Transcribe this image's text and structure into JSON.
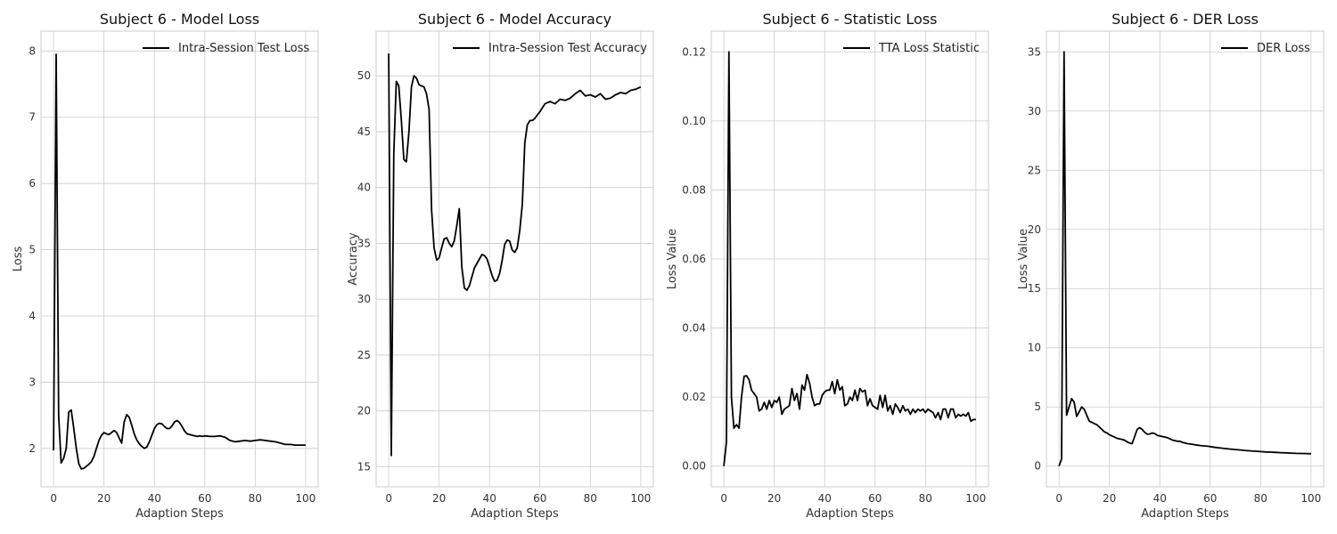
{
  "chart_data": [
    {
      "type": "line",
      "title": "Subject 6 - Model Loss",
      "xlabel": "Adaption Steps",
      "ylabel": "Loss",
      "xlim": [
        -5,
        105
      ],
      "ylim": [
        1.42,
        8.3
      ],
      "xticks": [
        0,
        20,
        40,
        60,
        80,
        100
      ],
      "yticks": [
        2,
        3,
        4,
        5,
        6,
        7,
        8
      ],
      "grid": true,
      "legend_position": "top-right",
      "series": [
        {
          "name": "Intra-Session Test Loss",
          "color": "#000000",
          "x": [
            0,
            1,
            2,
            3,
            4,
            5,
            6,
            7,
            8,
            9,
            10,
            11,
            12,
            13,
            14,
            15,
            16,
            17,
            18,
            19,
            20,
            21,
            22,
            23,
            24,
            25,
            26,
            27,
            28,
            29,
            30,
            31,
            32,
            33,
            34,
            35,
            36,
            37,
            38,
            39,
            40,
            41,
            42,
            43,
            44,
            45,
            46,
            47,
            48,
            49,
            50,
            51,
            52,
            53,
            54,
            55,
            56,
            57,
            58,
            59,
            60,
            62,
            64,
            66,
            68,
            70,
            72,
            74,
            76,
            78,
            80,
            82,
            84,
            86,
            88,
            90,
            92,
            94,
            96,
            98,
            100
          ],
          "y": [
            1.97,
            7.95,
            2.5,
            1.78,
            1.85,
            2.0,
            2.55,
            2.58,
            2.3,
            2.0,
            1.77,
            1.69,
            1.7,
            1.73,
            1.76,
            1.8,
            1.88,
            2.0,
            2.12,
            2.2,
            2.24,
            2.22,
            2.21,
            2.24,
            2.27,
            2.24,
            2.16,
            2.08,
            2.4,
            2.51,
            2.47,
            2.35,
            2.22,
            2.13,
            2.07,
            2.03,
            2.0,
            2.02,
            2.1,
            2.2,
            2.3,
            2.36,
            2.38,
            2.37,
            2.33,
            2.3,
            2.3,
            2.34,
            2.4,
            2.42,
            2.39,
            2.33,
            2.26,
            2.22,
            2.21,
            2.2,
            2.19,
            2.18,
            2.19,
            2.18,
            2.19,
            2.18,
            2.18,
            2.19,
            2.17,
            2.12,
            2.1,
            2.11,
            2.12,
            2.11,
            2.12,
            2.13,
            2.12,
            2.11,
            2.1,
            2.08,
            2.06,
            2.06,
            2.05,
            2.05,
            2.05
          ]
        }
      ]
    },
    {
      "type": "line",
      "title": "Subject 6 - Model Accuracy",
      "xlabel": "Adaption Steps",
      "ylabel": "Accuracy",
      "xlim": [
        -5,
        105
      ],
      "ylim": [
        13.2,
        54.0
      ],
      "xticks": [
        0,
        20,
        40,
        60,
        80,
        100
      ],
      "yticks": [
        15,
        20,
        25,
        30,
        35,
        40,
        45,
        50
      ],
      "grid": true,
      "legend_position": "top-right",
      "series": [
        {
          "name": "Intra-Session Test Accuracy",
          "color": "#000000",
          "x": [
            0,
            1,
            2,
            3,
            4,
            5,
            6,
            7,
            8,
            9,
            10,
            11,
            12,
            13,
            14,
            15,
            16,
            17,
            18,
            19,
            20,
            21,
            22,
            23,
            24,
            25,
            26,
            27,
            28,
            29,
            30,
            31,
            32,
            33,
            34,
            35,
            36,
            37,
            38,
            39,
            40,
            41,
            42,
            43,
            44,
            45,
            46,
            47,
            48,
            49,
            50,
            51,
            52,
            53,
            54,
            55,
            56,
            57,
            58,
            59,
            60,
            62,
            64,
            66,
            68,
            70,
            72,
            74,
            76,
            78,
            80,
            82,
            84,
            86,
            88,
            90,
            92,
            94,
            96,
            98,
            100
          ],
          "y": [
            52,
            16,
            43,
            49.5,
            49.1,
            46,
            42.5,
            42.3,
            45,
            49,
            50,
            49.8,
            49.2,
            49.1,
            49,
            48.4,
            47,
            38,
            34.6,
            33.5,
            33.7,
            34.6,
            35.4,
            35.5,
            35,
            34.7,
            35.2,
            36.6,
            38.1,
            32.9,
            31,
            30.8,
            31.2,
            32,
            32.8,
            33.2,
            33.6,
            34,
            33.9,
            33.6,
            32.9,
            32.1,
            31.6,
            31.7,
            32.3,
            33.5,
            34.9,
            35.3,
            35.2,
            34.4,
            34.2,
            34.6,
            36.2,
            38.5,
            44,
            45.6,
            46,
            46,
            46.2,
            46.5,
            46.8,
            47.5,
            47.7,
            47.5,
            47.9,
            47.8,
            48.0,
            48.4,
            48.7,
            48.2,
            48.3,
            48.1,
            48.4,
            47.9,
            48.0,
            48.3,
            48.5,
            48.4,
            48.7,
            48.8,
            49.0
          ]
        }
      ]
    },
    {
      "type": "line",
      "title": "Subject 6 - Statistic Loss",
      "xlabel": "Adaption Steps",
      "ylabel": "Loss Value",
      "xlim": [
        -5,
        105
      ],
      "ylim": [
        -0.006,
        0.126
      ],
      "xticks": [
        0,
        20,
        40,
        60,
        80,
        100
      ],
      "yticks": [
        0.0,
        0.02,
        0.04,
        0.06,
        0.08,
        0.1,
        0.12
      ],
      "grid": true,
      "legend_position": "top-right",
      "series": [
        {
          "name": "TTA Loss Statistic",
          "color": "#000000",
          "x": [
            0,
            1,
            2,
            3,
            4,
            5,
            6,
            7,
            8,
            9,
            10,
            11,
            12,
            13,
            14,
            15,
            16,
            17,
            18,
            19,
            20,
            21,
            22,
            23,
            24,
            25,
            26,
            27,
            28,
            29,
            30,
            31,
            32,
            33,
            34,
            35,
            36,
            37,
            38,
            39,
            40,
            41,
            42,
            43,
            44,
            45,
            46,
            47,
            48,
            49,
            50,
            51,
            52,
            53,
            54,
            55,
            56,
            57,
            58,
            59,
            60,
            61,
            62,
            63,
            64,
            65,
            66,
            67,
            68,
            69,
            70,
            71,
            72,
            73,
            74,
            75,
            76,
            77,
            78,
            79,
            80,
            81,
            82,
            83,
            84,
            85,
            86,
            87,
            88,
            89,
            90,
            91,
            92,
            93,
            94,
            95,
            96,
            97,
            98,
            99,
            100
          ],
          "y": [
            0.0,
            0.007,
            0.12,
            0.02,
            0.011,
            0.012,
            0.011,
            0.02,
            0.026,
            0.0262,
            0.025,
            0.022,
            0.021,
            0.02,
            0.016,
            0.0165,
            0.0185,
            0.0165,
            0.019,
            0.017,
            0.019,
            0.0185,
            0.02,
            0.015,
            0.0165,
            0.017,
            0.0175,
            0.0225,
            0.019,
            0.021,
            0.0165,
            0.0235,
            0.022,
            0.0265,
            0.024,
            0.02,
            0.0175,
            0.018,
            0.018,
            0.0205,
            0.0215,
            0.022,
            0.022,
            0.0245,
            0.021,
            0.025,
            0.022,
            0.023,
            0.0175,
            0.018,
            0.02,
            0.019,
            0.022,
            0.019,
            0.0225,
            0.0215,
            0.022,
            0.0175,
            0.0195,
            0.0175,
            0.017,
            0.0165,
            0.0205,
            0.017,
            0.0205,
            0.016,
            0.0175,
            0.015,
            0.018,
            0.017,
            0.0155,
            0.0175,
            0.016,
            0.0165,
            0.015,
            0.0165,
            0.0155,
            0.0165,
            0.016,
            0.0165,
            0.0155,
            0.0165,
            0.016,
            0.0155,
            0.014,
            0.0155,
            0.0135,
            0.0165,
            0.0165,
            0.014,
            0.0165,
            0.0165,
            0.014,
            0.015,
            0.0145,
            0.015,
            0.0145,
            0.0155,
            0.013,
            0.0135,
            0.0135
          ]
        }
      ]
    },
    {
      "type": "line",
      "title": "Subject 6 - DER Loss",
      "xlabel": "Adaption Steps",
      "ylabel": "Loss Value",
      "xlim": [
        -5,
        105
      ],
      "ylim": [
        -1.75,
        36.75
      ],
      "xticks": [
        0,
        20,
        40,
        60,
        80,
        100
      ],
      "yticks": [
        0,
        5,
        10,
        15,
        20,
        25,
        30,
        35
      ],
      "grid": true,
      "legend_position": "top-right",
      "series": [
        {
          "name": "DER Loss",
          "color": "#000000",
          "x": [
            0,
            1,
            2,
            3,
            4,
            5,
            6,
            7,
            8,
            9,
            10,
            11,
            12,
            13,
            14,
            15,
            16,
            17,
            18,
            19,
            20,
            21,
            22,
            23,
            24,
            25,
            26,
            27,
            28,
            29,
            30,
            31,
            32,
            33,
            34,
            35,
            36,
            37,
            38,
            39,
            40,
            41,
            42,
            43,
            44,
            45,
            46,
            47,
            48,
            49,
            50,
            51,
            52,
            53,
            54,
            55,
            56,
            57,
            58,
            59,
            60,
            62,
            64,
            66,
            68,
            70,
            72,
            74,
            76,
            78,
            80,
            82,
            84,
            86,
            88,
            90,
            92,
            94,
            96,
            98,
            100
          ],
          "y": [
            0,
            0.6,
            35,
            4.3,
            5.0,
            5.7,
            5.4,
            4.2,
            4.6,
            5.0,
            4.8,
            4.3,
            3.8,
            3.7,
            3.6,
            3.5,
            3.3,
            3.1,
            2.9,
            2.8,
            2.65,
            2.55,
            2.45,
            2.35,
            2.3,
            2.25,
            2.2,
            2.05,
            1.95,
            1.9,
            2.5,
            3.1,
            3.25,
            3.1,
            2.85,
            2.7,
            2.72,
            2.8,
            2.75,
            2.6,
            2.55,
            2.5,
            2.45,
            2.4,
            2.3,
            2.2,
            2.15,
            2.1,
            2.1,
            2.0,
            1.95,
            1.9,
            1.87,
            1.84,
            1.8,
            1.77,
            1.74,
            1.72,
            1.7,
            1.68,
            1.65,
            1.58,
            1.53,
            1.48,
            1.44,
            1.4,
            1.36,
            1.32,
            1.29,
            1.26,
            1.23,
            1.2,
            1.18,
            1.16,
            1.14,
            1.12,
            1.1,
            1.08,
            1.07,
            1.06,
            1.05
          ]
        }
      ]
    }
  ]
}
